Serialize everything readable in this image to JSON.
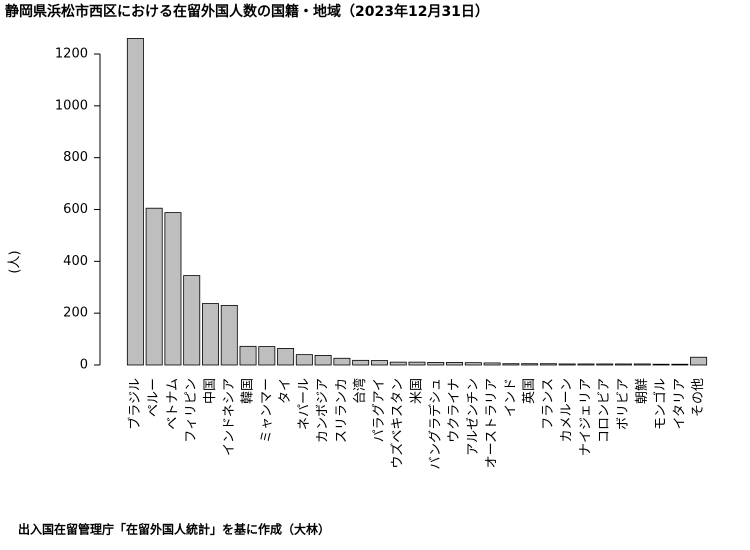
{
  "chart_data": {
    "type": "bar",
    "title": "静岡県浜松市西区における在留外国人数の国籍・地域（2023年12月31日）",
    "y_label": "(人)",
    "note": "出入国在留管理庁「在留外国人統計」を基に作成（大林）",
    "categories": [
      "ブラジル",
      "ペルー",
      "ベトナム",
      "フィリピン",
      "中国",
      "インドネシア",
      "韓国",
      "ミャンマー",
      "タイ",
      "ネパール",
      "カンボジア",
      "スリランカ",
      "台湾",
      "パラグアイ",
      "ウズベキスタン",
      "米国",
      "バングラデシュ",
      "ウクライナ",
      "アルゼンチン",
      "オーストラリア",
      "インド",
      "英国",
      "フランス",
      "カメルーン",
      "ナイジェリア",
      "コロンビア",
      "ボリビア",
      "朝鮮",
      "モンゴル",
      "イタリア",
      "その他"
    ],
    "values": [
      1260,
      605,
      588,
      345,
      237,
      230,
      72,
      71,
      64,
      40,
      37,
      26,
      18,
      17,
      11,
      11,
      10,
      10,
      9,
      8,
      5,
      5,
      5,
      4,
      4,
      4,
      4,
      4,
      3,
      3,
      30
    ],
    "color": "#bebebe",
    "ylim": [
      0,
      1200
    ],
    "yticks": [
      0,
      200,
      400,
      600,
      800,
      1000,
      1200
    ]
  }
}
